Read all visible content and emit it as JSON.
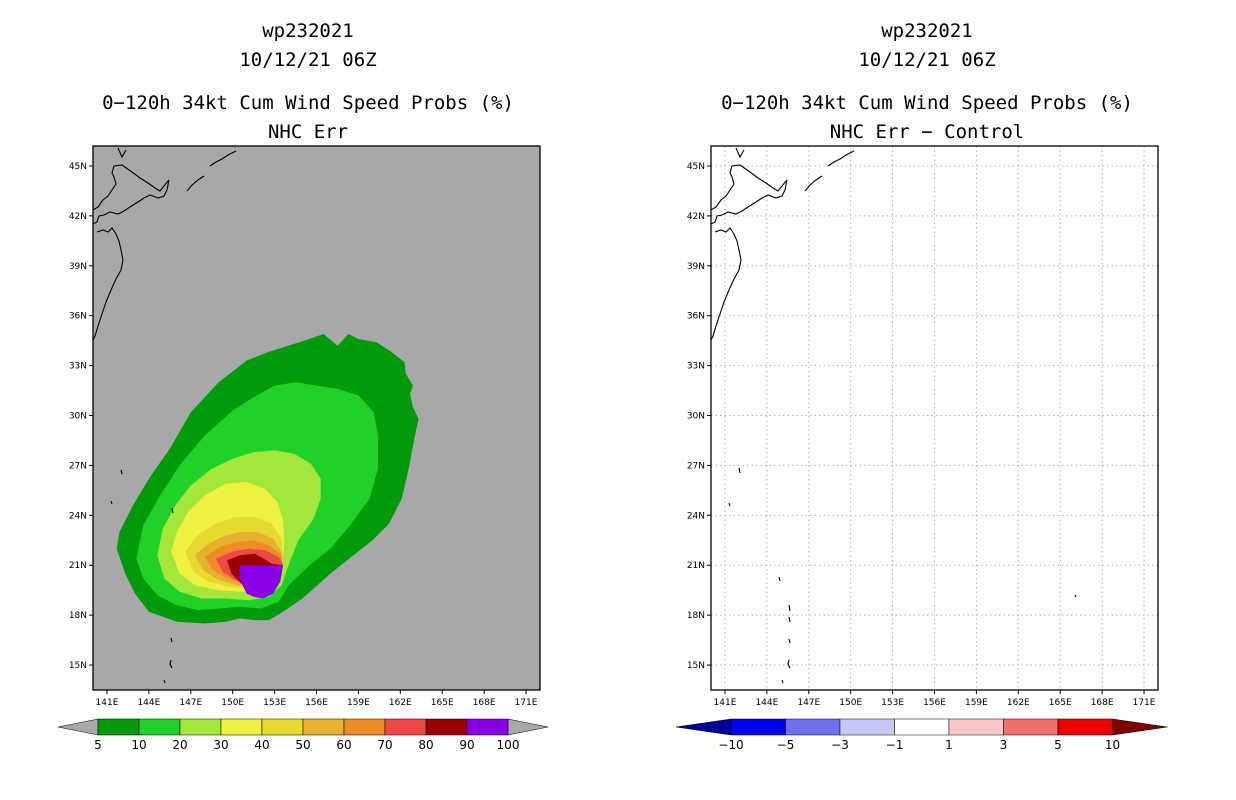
{
  "chart_data": [
    {
      "type": "contour-map",
      "storm_id": "wp232021",
      "date": "10/12/21 06Z",
      "title": "0−120h 34kt Cum Wind Speed Probs (%)",
      "subtitle": "NHC Err",
      "lon_ticks": [
        "141E",
        "144E",
        "147E",
        "150E",
        "153E",
        "156E",
        "159E",
        "162E",
        "165E",
        "168E",
        "171E"
      ],
      "lat_ticks": [
        "45N",
        "42N",
        "39N",
        "36N",
        "33N",
        "30N",
        "27N",
        "24N",
        "21N",
        "18N",
        "15N"
      ],
      "xlim": [
        140,
        172
      ],
      "ylim": [
        13.5,
        46.2
      ],
      "background_color": "#a8a8a8",
      "levels": [
        5,
        10,
        20,
        30,
        40,
        50,
        60,
        70,
        80,
        90,
        100
      ],
      "colors": [
        "#009a0a",
        "#21d12a",
        "#a3e63c",
        "#f0f040",
        "#e6da30",
        "#e6b030",
        "#ee8c28",
        "#f04848",
        "#9a0000",
        "#8a00e6"
      ],
      "colorbar_labels": [
        "5",
        "10",
        "20",
        "30",
        "40",
        "50",
        "60",
        "70",
        "80",
        "90",
        "100"
      ],
      "contours": [
        {
          "level": 5,
          "lonlat": [
            [
              141.7,
              22
            ],
            [
              142.3,
              20.5
            ],
            [
              143,
              19.3
            ],
            [
              144,
              18.2
            ],
            [
              146,
              17.6
            ],
            [
              148,
              17.5
            ],
            [
              149.5,
              17.6
            ],
            [
              150.5,
              17.8
            ],
            [
              151.6,
              17.7
            ],
            [
              152.6,
              17.7
            ],
            [
              153.6,
              18.2
            ],
            [
              155,
              19
            ],
            [
              157,
              20.5
            ],
            [
              158.5,
              21.5
            ],
            [
              160,
              22.5
            ],
            [
              161.2,
              23.5
            ],
            [
              162.1,
              25
            ],
            [
              162.6,
              26.8
            ],
            [
              163,
              28.6
            ],
            [
              163.3,
              29.8
            ],
            [
              162.9,
              30.5
            ],
            [
              162.7,
              31.3
            ],
            [
              162.9,
              31.8
            ],
            [
              162.4,
              32.5
            ],
            [
              162.3,
              33.2
            ],
            [
              161.4,
              33.8
            ],
            [
              160.3,
              34.4
            ],
            [
              159,
              34.6
            ],
            [
              158.3,
              34.9
            ],
            [
              157.5,
              34.2
            ],
            [
              156.5,
              34.9
            ],
            [
              155.5,
              34.6
            ],
            [
              154,
              34.2
            ],
            [
              152.5,
              33.8
            ],
            [
              151,
              33.3
            ],
            [
              149,
              32
            ],
            [
              147,
              30.2
            ],
            [
              145.5,
              28
            ],
            [
              144,
              26.2
            ],
            [
              142.8,
              24.5
            ],
            [
              141.9,
              23
            ]
          ]
        },
        {
          "level": 10,
          "lonlat": [
            [
              143.1,
              21.4
            ],
            [
              143.6,
              20.2
            ],
            [
              144.6,
              19.2
            ],
            [
              146,
              18.6
            ],
            [
              147.5,
              18.3
            ],
            [
              149,
              18.4
            ],
            [
              150.5,
              18.5
            ],
            [
              152,
              18.4
            ],
            [
              153.3,
              18.8
            ],
            [
              154,
              19.8
            ],
            [
              155.5,
              21
            ],
            [
              157,
              22
            ],
            [
              158.5,
              23.5
            ],
            [
              159.8,
              25
            ],
            [
              160.4,
              26.8
            ],
            [
              160.4,
              28.8
            ],
            [
              160.1,
              30.2
            ],
            [
              159,
              31.2
            ],
            [
              157.5,
              31.6
            ],
            [
              156,
              31.8
            ],
            [
              154.5,
              32
            ],
            [
              153,
              31.8
            ],
            [
              151.5,
              31.1
            ],
            [
              150,
              30.3
            ],
            [
              148,
              28.8
            ],
            [
              146.2,
              27
            ],
            [
              144.8,
              25.2
            ],
            [
              143.6,
              23.4
            ]
          ]
        },
        {
          "level": 20,
          "lonlat": [
            [
              144.6,
              21.6
            ],
            [
              145.1,
              20.2
            ],
            [
              146.2,
              19.4
            ],
            [
              147.8,
              19
            ],
            [
              149.5,
              19
            ],
            [
              151.2,
              18.9
            ],
            [
              152.6,
              19.1
            ],
            [
              153.5,
              19.8
            ],
            [
              154,
              21
            ],
            [
              154.7,
              22.5
            ],
            [
              155.8,
              23.8
            ],
            [
              156.3,
              25
            ],
            [
              156.3,
              26.2
            ],
            [
              155.6,
              27.1
            ],
            [
              154.4,
              27.7
            ],
            [
              153,
              27.9
            ],
            [
              151.5,
              27.8
            ],
            [
              150,
              27.4
            ],
            [
              148.5,
              26.8
            ],
            [
              147,
              25.8
            ],
            [
              145.9,
              24.6
            ],
            [
              145,
              23.2
            ]
          ]
        },
        {
          "level": 30,
          "lonlat": [
            [
              145.6,
              21.8
            ],
            [
              146.2,
              20.5
            ],
            [
              147.3,
              19.8
            ],
            [
              149,
              19.5
            ],
            [
              150.8,
              19.4
            ],
            [
              152.3,
              19.5
            ],
            [
              153.3,
              20.2
            ],
            [
              153.6,
              21.3
            ],
            [
              153.7,
              22.5
            ],
            [
              153.6,
              23.7
            ],
            [
              153.2,
              24.8
            ],
            [
              152.3,
              25.6
            ],
            [
              151,
              26
            ],
            [
              149.5,
              25.9
            ],
            [
              148,
              25.2
            ],
            [
              146.8,
              24.2
            ],
            [
              146,
              23
            ]
          ]
        },
        {
          "level": 40,
          "lonlat": [
            [
              146.6,
              21.8
            ],
            [
              147.2,
              20.6
            ],
            [
              148.3,
              20
            ],
            [
              149.7,
              19.7
            ],
            [
              151.3,
              19.6
            ],
            [
              152.7,
              19.9
            ],
            [
              153.5,
              20.6
            ],
            [
              153.6,
              21.6
            ],
            [
              153.5,
              22.6
            ],
            [
              152.8,
              23.5
            ],
            [
              151.6,
              23.9
            ],
            [
              150.2,
              23.9
            ],
            [
              148.8,
              23.5
            ],
            [
              147.5,
              22.8
            ]
          ]
        },
        {
          "level": 50,
          "lonlat": [
            [
              147.3,
              21.6
            ],
            [
              147.9,
              20.7
            ],
            [
              149,
              20.1
            ],
            [
              150.3,
              19.8
            ],
            [
              151.7,
              19.8
            ],
            [
              153,
              20.2
            ],
            [
              153.6,
              21
            ],
            [
              153.5,
              21.8
            ],
            [
              152.9,
              22.6
            ],
            [
              151.8,
              23
            ],
            [
              150.5,
              23
            ],
            [
              149.2,
              22.7
            ],
            [
              148.1,
              22.2
            ]
          ]
        },
        {
          "level": 60,
          "lonlat": [
            [
              148,
              21.5
            ],
            [
              148.6,
              20.7
            ],
            [
              149.6,
              20.2
            ],
            [
              150.8,
              19.9
            ],
            [
              152.1,
              19.9
            ],
            [
              153.2,
              20.3
            ],
            [
              153.6,
              21
            ],
            [
              153.4,
              21.7
            ],
            [
              152.6,
              22.2
            ],
            [
              151.5,
              22.5
            ],
            [
              150.3,
              22.4
            ],
            [
              149.1,
              22.1
            ]
          ]
        },
        {
          "level": 70,
          "lonlat": [
            [
              148.8,
              21.4
            ],
            [
              149.3,
              20.6
            ],
            [
              150.2,
              20.1
            ],
            [
              151.3,
              19.8
            ],
            [
              152.5,
              19.9
            ],
            [
              153.4,
              20.3
            ],
            [
              153.6,
              21
            ],
            [
              153.3,
              21.5
            ],
            [
              152.3,
              21.9
            ],
            [
              151.1,
              22
            ],
            [
              149.9,
              21.8
            ]
          ]
        },
        {
          "level": 80,
          "lonlat": [
            [
              149.6,
              21.3
            ],
            [
              149.9,
              20.5
            ],
            [
              150.6,
              19.9
            ],
            [
              151.6,
              19.6
            ],
            [
              152.6,
              19.7
            ],
            [
              153.4,
              20.1
            ],
            [
              153.6,
              21
            ],
            [
              152.8,
              21.1
            ],
            [
              151.6,
              21.7
            ],
            [
              150.5,
              21.6
            ]
          ]
        },
        {
          "level": 90,
          "lonlat": [
            [
              150.5,
              21
            ],
            [
              153.6,
              21
            ],
            [
              153.4,
              20
            ],
            [
              152.9,
              19.3
            ],
            [
              152.2,
              19
            ],
            [
              151.5,
              19.1
            ],
            [
              151,
              19.3
            ],
            [
              150.7,
              19.8
            ],
            [
              150.5,
              20.3
            ]
          ]
        }
      ]
    },
    {
      "type": "contour-map",
      "storm_id": "wp232021",
      "date": "10/12/21 06Z",
      "title": "0−120h 34kt Cum Wind Speed Probs (%)",
      "subtitle": "NHC Err − Control",
      "lon_ticks": [
        "141E",
        "144E",
        "147E",
        "150E",
        "153E",
        "156E",
        "159E",
        "162E",
        "165E",
        "168E",
        "171E"
      ],
      "lat_ticks": [
        "45N",
        "42N",
        "39N",
        "36N",
        "33N",
        "30N",
        "27N",
        "24N",
        "21N",
        "18N",
        "15N"
      ],
      "xlim": [
        140,
        172
      ],
      "ylim": [
        13.5,
        46.2
      ],
      "grid": true,
      "levels": [
        -10,
        -5,
        -3,
        -1,
        1,
        3,
        5,
        10
      ],
      "colors": [
        "#000096",
        "#0000ee",
        "#7070ee",
        "#c8c8f8",
        "#ffffff",
        "#f8c8c8",
        "#f07070",
        "#ee0000",
        "#800000"
      ],
      "colorbar_labels": [
        "−10",
        "−5",
        "−3",
        "−1",
        "1",
        "3",
        "5",
        "10"
      ],
      "contours": []
    }
  ]
}
